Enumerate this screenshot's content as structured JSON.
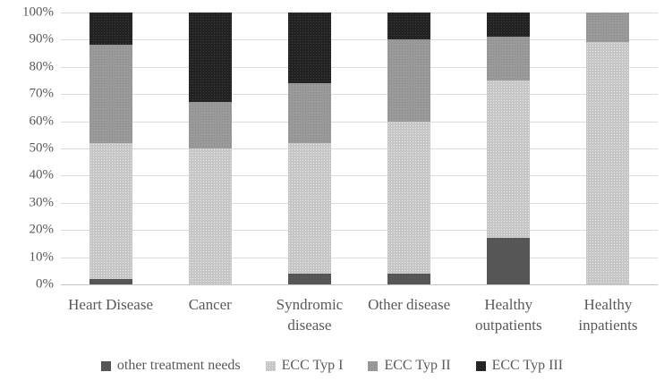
{
  "figure": {
    "background": "#ffffff",
    "text_color": "#595959",
    "gridline_color": "#dcdcdc"
  },
  "colors": {
    "other_treatment_needs": "#565656",
    "ecc_typ_i": "#c6c6c6",
    "ecc_typ_ii": "#9a9a9a",
    "ecc_typ_iii": "#222222"
  },
  "chart_data": {
    "type": "bar",
    "subtype": "stacked-100-percent",
    "title": "",
    "xlabel": "",
    "ylabel": "",
    "grid": true,
    "legend_position": "bottom",
    "ylim": [
      0,
      100
    ],
    "y_tick_labels": [
      "100%",
      "90%",
      "80%",
      "70%",
      "60%",
      "50%",
      "40%",
      "30%",
      "20%",
      "10%",
      "0%"
    ],
    "categories": [
      "Heart Disease",
      "Cancer",
      "Syndromic disease",
      "Other disease",
      "Healthy outpatients",
      "Healthy inpatients"
    ],
    "series": [
      {
        "name": "other treatment needs",
        "pattern": "pat-other",
        "values": [
          2,
          0,
          4,
          4,
          17,
          0
        ]
      },
      {
        "name": "ECC Typ I",
        "pattern": "pat-typ1",
        "values": [
          50,
          50,
          48,
          56,
          58,
          89
        ]
      },
      {
        "name": "ECC Typ II",
        "pattern": "pat-typ2",
        "values": [
          36,
          17,
          22,
          30,
          16,
          11
        ]
      },
      {
        "name": "ECC Typ III",
        "pattern": "pat-typ3",
        "values": [
          12,
          33,
          26,
          10,
          9,
          0
        ]
      }
    ]
  }
}
